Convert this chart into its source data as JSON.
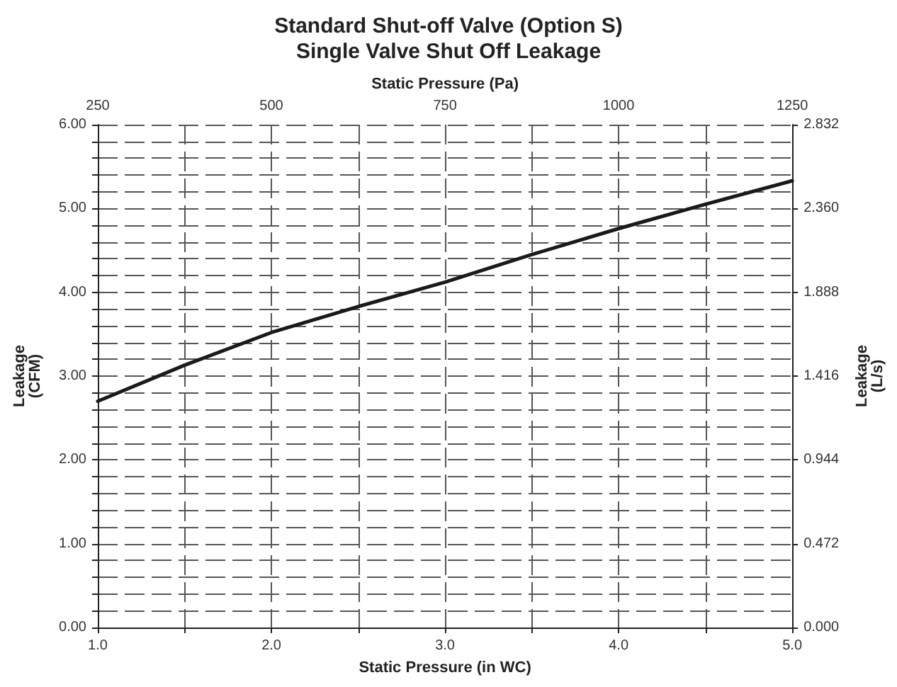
{
  "chart_data": {
    "type": "line",
    "title": "Standard Shut-off Valve (Option S)",
    "subtitle": "Single Valve Shut Off Leakage",
    "xlabel": "Static Pressure (in WC)",
    "x2label": "Static Pressure (Pa)",
    "ylabel": "Leakage\n(CFM)",
    "y2label": "Leakage\n(L/s)",
    "x": [
      1.0,
      1.5,
      2.0,
      2.5,
      3.0,
      3.5,
      4.0,
      4.5,
      5.0
    ],
    "series": [
      {
        "color": "#1a1a1a",
        "values": [
          2.7,
          3.13,
          3.52,
          3.83,
          4.12,
          4.45,
          4.76,
          5.05,
          5.33
        ]
      }
    ],
    "xlim": [
      1,
      5
    ],
    "xticks": [
      {
        "value": 1,
        "label": "1.0"
      },
      {
        "value": 1.5,
        "label": null
      },
      {
        "value": 2,
        "label": "2.0"
      },
      {
        "value": 2.5,
        "label": null
      },
      {
        "value": 3,
        "label": "3.0"
      },
      {
        "value": 3.5,
        "label": null
      },
      {
        "value": 4,
        "label": "4.0"
      },
      {
        "value": 4.5,
        "label": null
      },
      {
        "value": 5,
        "label": "5.0"
      }
    ],
    "x2lim": [
      250,
      1250
    ],
    "x2ticks": [
      250,
      500,
      750,
      1000,
      1250
    ],
    "ylim": [
      0,
      6
    ],
    "yticks": [
      {
        "value": 0,
        "label": "0.00"
      },
      {
        "value": 0.2,
        "label": null
      },
      {
        "value": 0.4,
        "label": null
      },
      {
        "value": 0.6,
        "label": null
      },
      {
        "value": 0.8,
        "label": null
      },
      {
        "value": 1,
        "label": "1.00"
      },
      {
        "value": 1.2,
        "label": null
      },
      {
        "value": 1.4,
        "label": null
      },
      {
        "value": 1.6,
        "label": null
      },
      {
        "value": 1.8,
        "label": null
      },
      {
        "value": 2,
        "label": "2.00"
      },
      {
        "value": 2.2,
        "label": null
      },
      {
        "value": 2.4,
        "label": null
      },
      {
        "value": 2.6,
        "label": null
      },
      {
        "value": 2.8,
        "label": null
      },
      {
        "value": 3,
        "label": "3.00"
      },
      {
        "value": 3.2,
        "label": null
      },
      {
        "value": 3.4,
        "label": null
      },
      {
        "value": 3.6,
        "label": null
      },
      {
        "value": 3.8,
        "label": null
      },
      {
        "value": 4,
        "label": "4.00"
      },
      {
        "value": 4.2,
        "label": null
      },
      {
        "value": 4.4,
        "label": null
      },
      {
        "value": 4.6,
        "label": null
      },
      {
        "value": 4.8,
        "label": null
      },
      {
        "value": 5,
        "label": "5.00"
      },
      {
        "value": 5.2,
        "label": null
      },
      {
        "value": 5.4,
        "label": null
      },
      {
        "value": 5.6,
        "label": null
      },
      {
        "value": 5.8,
        "label": null
      },
      {
        "value": 6,
        "label": "6.00"
      }
    ],
    "y2lim": [
      0,
      2.832
    ],
    "y2ticks": [
      {
        "value": 0,
        "label": "0.000"
      },
      {
        "value": 0.472,
        "label": "0.472"
      },
      {
        "value": 0.944,
        "label": "0.944"
      },
      {
        "value": 1.416,
        "label": "1.416"
      },
      {
        "value": 1.888,
        "label": "1.888"
      },
      {
        "value": 2.36,
        "label": "2.360"
      },
      {
        "value": 2.832,
        "label": "2.832"
      }
    ],
    "grid": true,
    "marker": "none",
    "line_style": "solid"
  }
}
